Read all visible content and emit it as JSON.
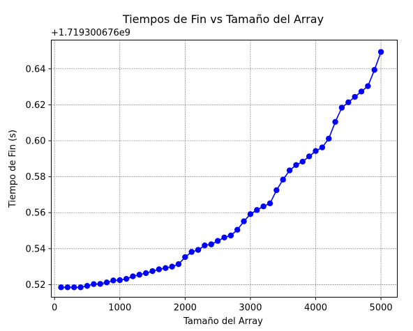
{
  "chart_data": {
    "type": "line",
    "title": "Tiempos de Fin vs Tamaño del Array",
    "xlabel": "Tamaño del Array",
    "ylabel": "Tiempo de Fin (s)",
    "y_offset_label": "+1.719300676e9",
    "xlim": [
      -50,
      5250
    ],
    "ylim": [
      0.513,
      0.656
    ],
    "x_ticks": [
      0,
      1000,
      2000,
      3000,
      4000,
      5000
    ],
    "x_tick_labels": [
      "0",
      "1000",
      "2000",
      "3000",
      "4000",
      "5000"
    ],
    "y_ticks": [
      0.52,
      0.54,
      0.56,
      0.58,
      0.6,
      0.62,
      0.64
    ],
    "y_tick_labels": [
      "0.52",
      "0.54",
      "0.56",
      "0.58",
      "0.60",
      "0.62",
      "0.64"
    ],
    "grid": true,
    "series": [
      {
        "color": "#0000ff",
        "marker": "circle",
        "x": [
          100,
          200,
          300,
          400,
          500,
          600,
          700,
          800,
          900,
          1000,
          1100,
          1200,
          1300,
          1400,
          1500,
          1600,
          1700,
          1800,
          1900,
          2000,
          2100,
          2200,
          2300,
          2400,
          2500,
          2600,
          2700,
          2800,
          2900,
          3000,
          3100,
          3200,
          3300,
          3400,
          3500,
          3600,
          3700,
          3800,
          3900,
          4000,
          4100,
          4200,
          4300,
          4400,
          4500,
          4600,
          4700,
          4800,
          4900,
          5000
        ],
        "values": [
          0.5185,
          0.5185,
          0.5185,
          0.5185,
          0.5193,
          0.5203,
          0.5204,
          0.5212,
          0.5223,
          0.5225,
          0.5232,
          0.5246,
          0.5255,
          0.5264,
          0.5275,
          0.5285,
          0.5292,
          0.53,
          0.5314,
          0.5353,
          0.5382,
          0.5393,
          0.5418,
          0.5424,
          0.5443,
          0.5462,
          0.5473,
          0.5505,
          0.5552,
          0.5592,
          0.5615,
          0.5635,
          0.5652,
          0.5725,
          0.5784,
          0.5835,
          0.5865,
          0.5884,
          0.5913,
          0.5943,
          0.5963,
          0.6012,
          0.6105,
          0.6184,
          0.6214,
          0.6244,
          0.6274,
          0.6304,
          0.6394,
          0.6494
        ]
      }
    ]
  }
}
